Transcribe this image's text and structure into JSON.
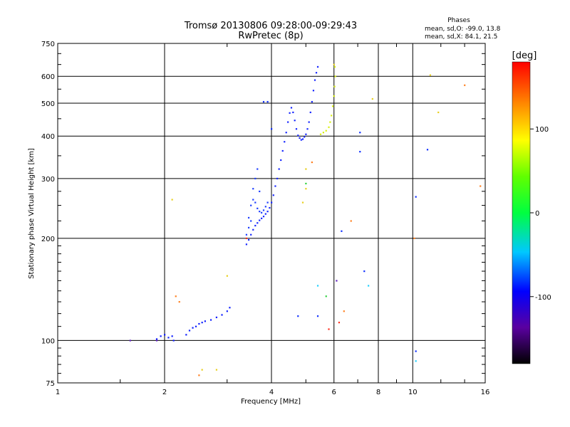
{
  "chart_data": {
    "type": "scatter",
    "title": "Tromsø 20130806 09:28:00-09:29:43",
    "subtitle": "RwPretec (8p)",
    "xlabel": "Frequency [MHz]",
    "ylabel": "Stationary phase Virtual Height [km]",
    "x_scale": "log",
    "y_scale": "log",
    "xlim": [
      1,
      16
    ],
    "ylim": [
      75,
      750
    ],
    "x_ticks": [
      1,
      2,
      4,
      6,
      8,
      10,
      16
    ],
    "x_tick_labels": [
      "1",
      "2",
      "4",
      "6",
      "8",
      "10",
      "16"
    ],
    "y_ticks": [
      75,
      100,
      200,
      300,
      400,
      500,
      600,
      750
    ],
    "y_tick_labels": [
      "75",
      "100",
      "200",
      "300",
      "400",
      "500",
      "600",
      "750"
    ],
    "grid": true,
    "phase_info": {
      "heading": "Phases",
      "line_o": "mean, sd,O: -99.0, 13.8",
      "line_x": "mean, sd,X:  84.1, 21.5"
    },
    "colorbar": {
      "label": "[deg]",
      "range": [
        -180,
        180
      ],
      "ticks": [
        100,
        0,
        -100
      ],
      "tick_labels": [
        "100",
        "0",
        "-100"
      ]
    },
    "series": [
      {
        "trace": "lower-trace",
        "phase": -100,
        "color": "#1020ff",
        "points": [
          [
            1.9,
            101
          ],
          [
            1.95,
            103
          ],
          [
            2.0,
            104
          ],
          [
            2.05,
            102
          ],
          [
            2.1,
            103
          ],
          [
            2.12,
            100
          ],
          [
            2.3,
            104
          ],
          [
            2.4,
            109
          ],
          [
            2.5,
            112
          ],
          [
            2.6,
            114
          ],
          [
            2.7,
            115
          ],
          [
            2.8,
            117
          ],
          [
            2.9,
            119
          ],
          [
            3.0,
            122
          ],
          [
            3.05,
            125
          ],
          [
            2.35,
            107
          ],
          [
            2.45,
            110
          ],
          [
            2.55,
            113
          ]
        ]
      },
      {
        "trace": "o-trace-lower",
        "phase": -100,
        "color": "#1828ff",
        "points": [
          [
            3.4,
            192
          ],
          [
            3.45,
            198
          ],
          [
            3.5,
            205
          ],
          [
            3.55,
            212
          ],
          [
            3.6,
            218
          ],
          [
            3.65,
            222
          ],
          [
            3.7,
            226
          ],
          [
            3.75,
            229
          ],
          [
            3.8,
            232
          ],
          [
            3.85,
            236
          ],
          [
            3.9,
            240
          ],
          [
            3.95,
            246
          ],
          [
            4.0,
            255
          ],
          [
            4.05,
            268
          ],
          [
            4.1,
            285
          ],
          [
            4.15,
            300
          ],
          [
            4.2,
            320
          ],
          [
            4.25,
            340
          ],
          [
            4.3,
            362
          ],
          [
            4.35,
            385
          ],
          [
            4.4,
            410
          ],
          [
            4.45,
            440
          ],
          [
            4.5,
            468
          ],
          [
            4.55,
            485
          ]
        ]
      },
      {
        "trace": "o-trace-upper",
        "phase": -100,
        "color": "#1828ff",
        "points": [
          [
            4.6,
            470
          ],
          [
            4.65,
            445
          ],
          [
            4.7,
            420
          ],
          [
            4.75,
            402
          ],
          [
            4.8,
            395
          ],
          [
            4.85,
            390
          ],
          [
            4.9,
            392
          ],
          [
            4.95,
            398
          ],
          [
            5.0,
            405
          ],
          [
            5.05,
            420
          ],
          [
            5.1,
            440
          ],
          [
            5.15,
            470
          ],
          [
            5.2,
            505
          ],
          [
            5.25,
            545
          ],
          [
            5.3,
            585
          ],
          [
            5.35,
            615
          ],
          [
            5.4,
            640
          ]
        ]
      },
      {
        "trace": "o-trace-cusp",
        "phase": -100,
        "color": "#2040ff",
        "points": [
          [
            3.4,
            205
          ],
          [
            3.45,
            230
          ],
          [
            3.5,
            250
          ],
          [
            3.55,
            260
          ],
          [
            3.6,
            255
          ],
          [
            3.65,
            245
          ],
          [
            3.7,
            240
          ],
          [
            3.75,
            238
          ],
          [
            3.8,
            242
          ],
          [
            3.85,
            248
          ],
          [
            3.9,
            255
          ],
          [
            3.6,
            300
          ],
          [
            3.65,
            320
          ],
          [
            3.55,
            280
          ],
          [
            3.7,
            275
          ],
          [
            3.5,
            225
          ],
          [
            3.45,
            215
          ]
        ]
      },
      {
        "trace": "x-trace",
        "phase": 100,
        "color": "#d8f010",
        "points": [
          [
            5.5,
            405
          ],
          [
            5.6,
            410
          ],
          [
            5.7,
            415
          ],
          [
            5.8,
            425
          ],
          [
            5.85,
            440
          ],
          [
            5.9,
            460
          ],
          [
            5.95,
            490
          ],
          [
            6.0,
            525
          ],
          [
            6.02,
            560
          ],
          [
            6.05,
            600
          ],
          [
            6.03,
            640
          ]
        ]
      },
      {
        "trace": "scattered-blue",
        "phase": -110,
        "color": "#1030ff",
        "points": [
          [
            3.8,
            505
          ],
          [
            3.9,
            505
          ],
          [
            4.0,
            420
          ],
          [
            7.1,
            410
          ],
          [
            7.1,
            360
          ],
          [
            7.3,
            160
          ],
          [
            6.3,
            210
          ],
          [
            4.75,
            118
          ],
          [
            5.4,
            118
          ],
          [
            11.0,
            365
          ],
          [
            10.2,
            265
          ],
          [
            10.2,
            93
          ]
        ]
      },
      {
        "trace": "scattered-cyan",
        "phase": -40,
        "color": "#20d0ff",
        "points": [
          [
            5.4,
            145
          ],
          [
            7.5,
            145
          ],
          [
            10.2,
            87
          ]
        ]
      },
      {
        "trace": "scattered-warm",
        "phase": 130,
        "color": "#ff8020",
        "points": [
          [
            2.15,
            135
          ],
          [
            2.2,
            130
          ],
          [
            2.5,
            79
          ],
          [
            6.7,
            225
          ],
          [
            10.1,
            200
          ],
          [
            6.4,
            122
          ],
          [
            5.2,
            335
          ],
          [
            14.0,
            565
          ],
          [
            15.5,
            285
          ]
        ]
      },
      {
        "trace": "scattered-yellow",
        "phase": 100,
        "color": "#e8d020",
        "points": [
          [
            2.1,
            260
          ],
          [
            2.55,
            82
          ],
          [
            2.8,
            82
          ],
          [
            3.0,
            155
          ],
          [
            4.9,
            255
          ],
          [
            5.0,
            280
          ],
          [
            5.0,
            320
          ],
          [
            7.7,
            515
          ],
          [
            11.2,
            605
          ],
          [
            11.8,
            470
          ],
          [
            6.0,
            650
          ]
        ]
      },
      {
        "trace": "scattered-green",
        "phase": 50,
        "color": "#30d040",
        "points": [
          [
            5.7,
            135
          ],
          [
            5.0,
            290
          ]
        ]
      },
      {
        "trace": "scattered-purple",
        "phase": -150,
        "color": "#6020c0",
        "points": [
          [
            1.6,
            100
          ],
          [
            6.1,
            150
          ],
          [
            1.9,
            100
          ]
        ]
      },
      {
        "trace": "scattered-red",
        "phase": 160,
        "color": "#ff3020",
        "points": [
          [
            5.8,
            108
          ],
          [
            6.2,
            113
          ],
          [
            3.4,
            200
          ]
        ]
      }
    ]
  }
}
